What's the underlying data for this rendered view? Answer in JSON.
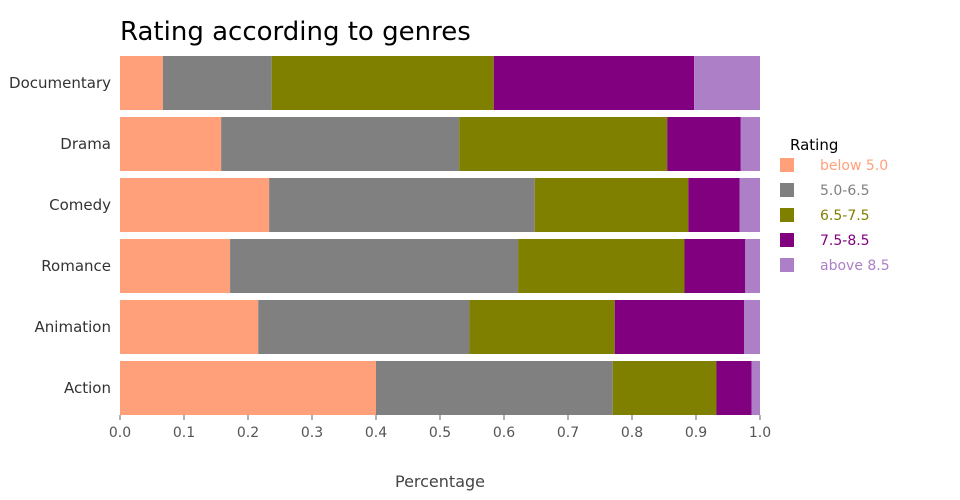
{
  "chart_data": {
    "type": "bar",
    "orientation": "horizontal",
    "stacked": true,
    "title": "Rating according to genres",
    "xlabel": "Percentage",
    "ylabel": "",
    "xlim": [
      0,
      1
    ],
    "xticks": [
      "0.0",
      "0.1",
      "0.2",
      "0.3",
      "0.4",
      "0.5",
      "0.6",
      "0.7",
      "0.8",
      "0.9",
      "1.0"
    ],
    "categories": [
      "Documentary",
      "Drama",
      "Comedy",
      "Romance",
      "Animation",
      "Action"
    ],
    "legend_title": "Rating",
    "legend_position": "right",
    "grid": false,
    "series": [
      {
        "name": "below 5.0",
        "color": "#FFA07A",
        "values": [
          0.067,
          0.158,
          0.233,
          0.172,
          0.216,
          0.4
        ]
      },
      {
        "name": "5.0-6.5",
        "color": "#808080",
        "values": [
          0.17,
          0.372,
          0.415,
          0.45,
          0.33,
          0.37
        ]
      },
      {
        "name": "6.5-7.5",
        "color": "#808000",
        "values": [
          0.347,
          0.325,
          0.24,
          0.26,
          0.227,
          0.162
        ]
      },
      {
        "name": "7.5-8.5",
        "color": "#800080",
        "values": [
          0.313,
          0.115,
          0.08,
          0.095,
          0.202,
          0.055
        ]
      },
      {
        "name": "above 8.5",
        "color": "#AD7FC7",
        "values": [
          0.103,
          0.03,
          0.032,
          0.023,
          0.025,
          0.013
        ]
      }
    ]
  }
}
